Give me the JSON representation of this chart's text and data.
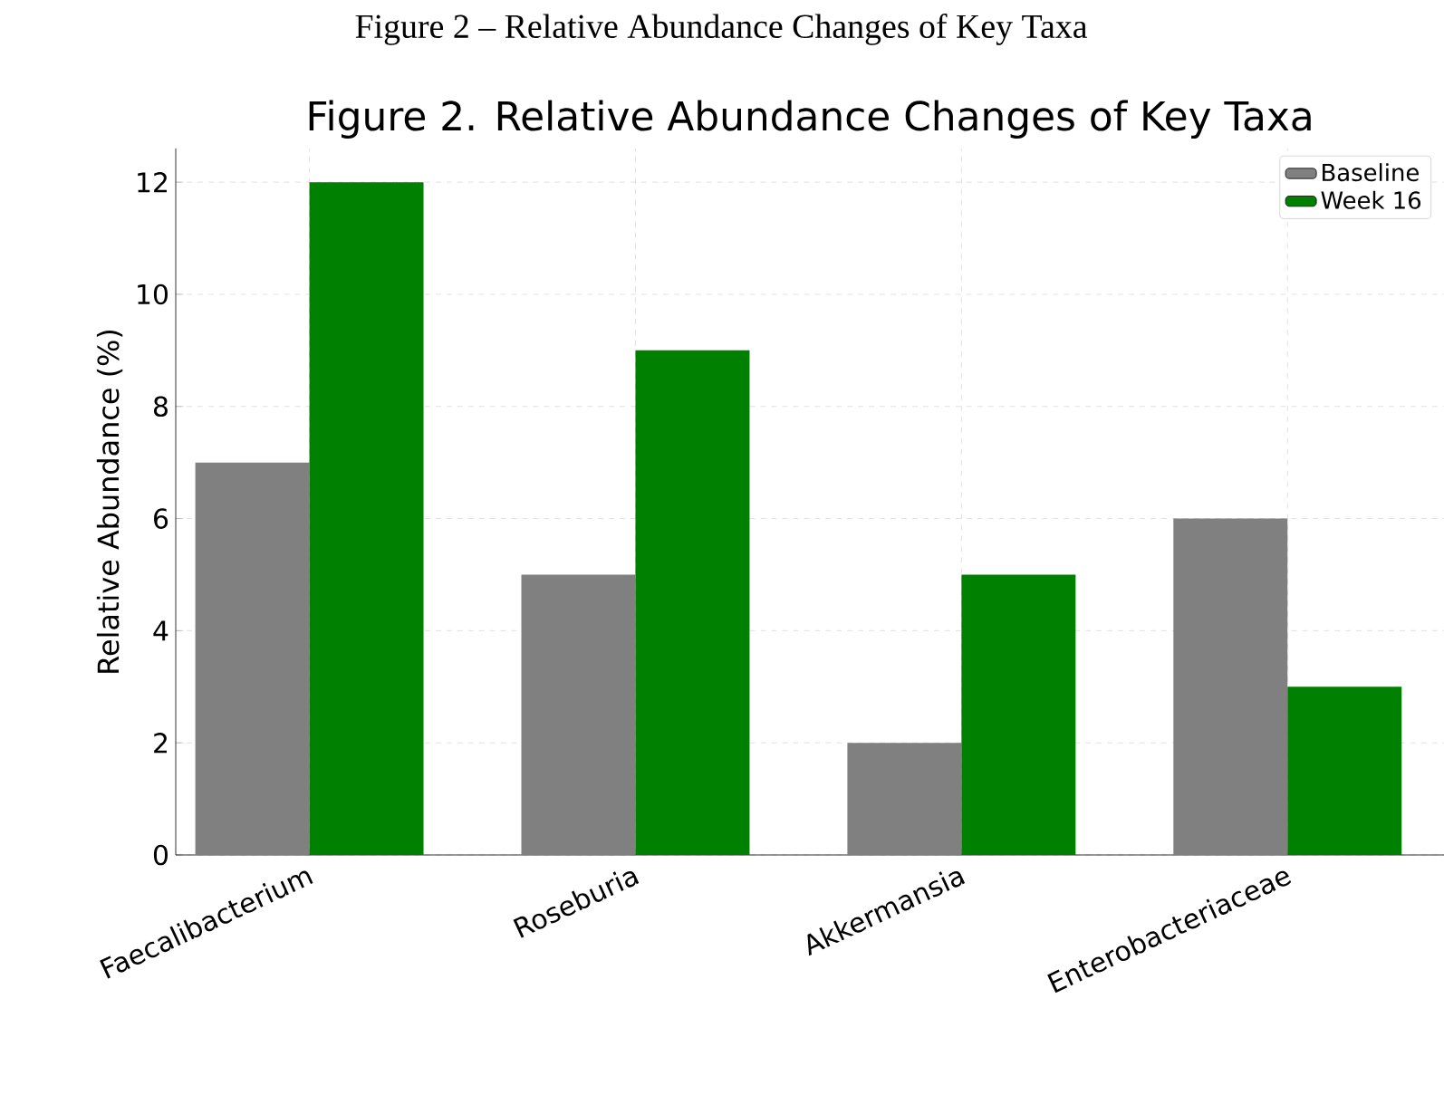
{
  "chart_data": {
    "type": "bar",
    "title": "Figure 2. Relative Abundance Changes of Key Taxa",
    "annotations": [
      "Figure 2 – Relative Abundance Changes of Key Taxa"
    ],
    "ylabel": "Relative Abundance (%)",
    "categories": [
      "Faecalibacterium",
      "Roseburia",
      "Akkermansia",
      "Enterobacteriaceae"
    ],
    "series": [
      {
        "name": "Baseline",
        "color": "#808080",
        "values": [
          7,
          5,
          2,
          6
        ]
      },
      {
        "name": "Week 16",
        "color": "#008000",
        "values": [
          12,
          9,
          5,
          3
        ]
      }
    ],
    "ylim": [
      0,
      12.6
    ],
    "yticks": [
      0,
      2,
      4,
      6,
      8,
      10,
      12
    ],
    "grid": true,
    "legend": "top right"
  }
}
